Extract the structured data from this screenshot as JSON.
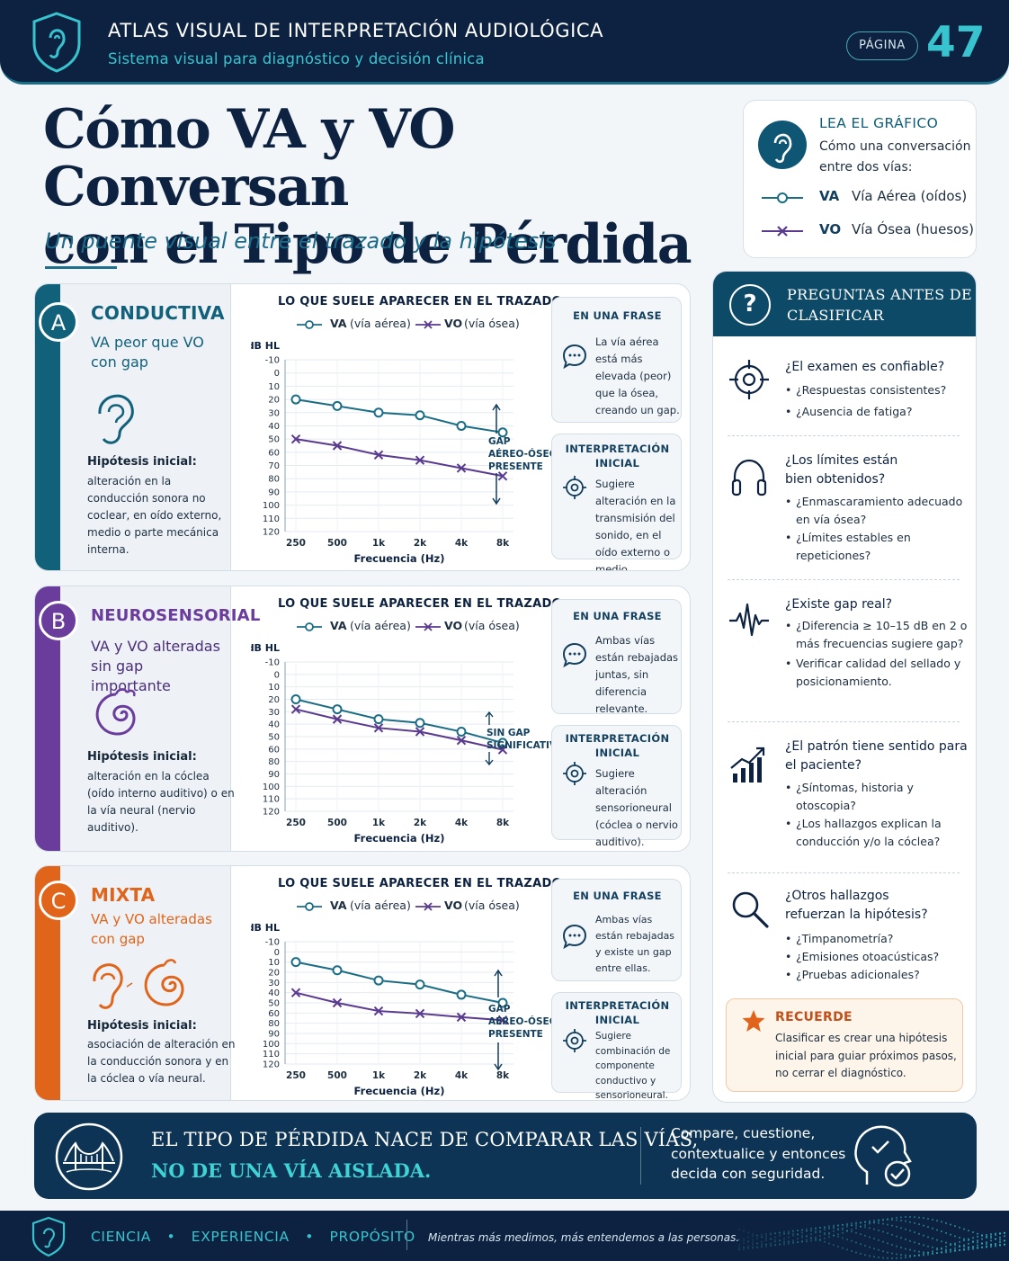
{
  "header": {
    "title": "ATLAS VISUAL DE INTERPRETACIÓN AUDIOLÓGICA",
    "subtitle": "Sistema visual para diagnóstico y decisión clínica",
    "page_label": "PÁGINA",
    "page_number": "47"
  },
  "hero": {
    "title_line1": "Cómo VA y VO Conversan",
    "title_line2": "con el Tipo de Pérdida",
    "subtitle": "Un puente visual entre el trazado y la hipótesis"
  },
  "legend": {
    "heading": "LEA EL GRÁFICO",
    "desc": "Cómo una conversación entre dos vías:",
    "va_abbr": "VA",
    "va_text": "Vía Aérea (oídos)",
    "vo_abbr": "VO",
    "vo_text": "Vía Ósea (huesos)"
  },
  "chart_common": {
    "graph_title": "LO QUE SUELE APARECER EN EL TRAZADO",
    "legend_va": "VA",
    "legend_va_note": "(vía aérea)",
    "legend_vo": "VO",
    "legend_vo_note": "(vía ósea)",
    "ylabel": "dB HL",
    "xlabel": "Frecuencia (Hz)",
    "yticks": [
      "-10",
      "0",
      "10",
      "20",
      "30",
      "40",
      "50",
      "60",
      "70",
      "80",
      "90",
      "100",
      "110",
      "120"
    ],
    "yticks_short": [
      "-10",
      "0",
      "10",
      "20",
      "30",
      "40",
      "50",
      "60",
      "80",
      "90",
      "100",
      "110",
      "120"
    ],
    "xticks": [
      "250",
      "500",
      "1k",
      "2k",
      "4k",
      "8k"
    ],
    "phrase_heading": "EN UNA FRASE",
    "interp_heading_1": "INTERPRETACIÓN",
    "interp_heading_2": "INICIAL",
    "hyp_heading": "Hipótesis inicial:"
  },
  "cards": [
    {
      "letter": "A",
      "title": "CONDUCTIVA",
      "subtitle": "VA peor que VO con gap",
      "hypothesis": "alteración en la conducción sonora no coclear, en oído externo, medio o parte mecánica interna.",
      "phrase": "La vía aérea está más elevada (peor) que la ósea, creando un gap.",
      "interpretation": "Sugiere alteración en la transmisión del sonido, en el oído externo o medio.",
      "gap_label": [
        "GAP",
        "AÉREO-ÓSEO",
        "PRESENTE"
      ],
      "color": "#12617a"
    },
    {
      "letter": "B",
      "title": "NEUROSENSORIAL",
      "subtitle": "VA y VO alteradas sin gap importante",
      "hypothesis": "alteración en la cóclea (oído interno auditivo) o en la vía neural (nervio auditivo).",
      "phrase": "Ambas vías están rebajadas juntas, sin diferencia relevante.",
      "interpretation": "Sugiere alteración sensorioneural (cóclea o nervio auditivo).",
      "gap_label": [
        "SIN GAP",
        "SIGNIFICATIVO"
      ],
      "color": "#6a3c9c"
    },
    {
      "letter": "C",
      "title": "MIXTA",
      "subtitle": "VA y VO alteradas con gap",
      "hypothesis": "asociación de alteración en la conducción sonora y en la cóclea o vía neural.",
      "phrase": "Ambas vías están rebajadas y existe un gap entre ellas.",
      "interpretation": "Sugiere combinación de componente conductivo y sensorioneural.",
      "gap_label": [
        "GAP",
        "AÉREO-ÓSEO",
        "PRESENTE"
      ],
      "color": "#e0641a"
    }
  ],
  "chart_data": [
    {
      "type": "line",
      "title": "LO QUE SUELE APARECER EN EL TRAZADO",
      "xlabel": "Frecuencia (Hz)",
      "ylabel": "dB HL",
      "categories": [
        "250",
        "500",
        "1k",
        "2k",
        "4k",
        "8k"
      ],
      "ylim": [
        -10,
        120
      ],
      "y_inverted": true,
      "series": [
        {
          "name": "VA (vía aérea)",
          "values": [
            20,
            25,
            30,
            32,
            40,
            45
          ]
        },
        {
          "name": "VO (vía ósea)",
          "values": [
            50,
            55,
            62,
            66,
            72,
            78
          ]
        }
      ]
    },
    {
      "type": "line",
      "title": "LO QUE SUELE APARECER EN EL TRAZADO",
      "xlabel": "Frecuencia (Hz)",
      "ylabel": "dB HL",
      "categories": [
        "250",
        "500",
        "1k",
        "2k",
        "4k",
        "8k"
      ],
      "ylim": [
        -10,
        120
      ],
      "y_inverted": true,
      "series": [
        {
          "name": "VA (vía aérea)",
          "values": [
            20,
            28,
            36,
            39,
            46,
            55
          ]
        },
        {
          "name": "VO (vía ósea)",
          "values": [
            28,
            36,
            43,
            46,
            53,
            61
          ]
        }
      ]
    },
    {
      "type": "line",
      "title": "LO QUE SUELE APARECER EN EL TRAZADO",
      "xlabel": "Frecuencia (Hz)",
      "ylabel": "dB HL",
      "categories": [
        "250",
        "500",
        "1k",
        "2k",
        "4k",
        "8k"
      ],
      "ylim": [
        -10,
        120
      ],
      "y_inverted": true,
      "series": [
        {
          "name": "VA (vía aérea)",
          "values": [
            10,
            18,
            28,
            32,
            42,
            50
          ]
        },
        {
          "name": "VO (vía ósea)",
          "values": [
            40,
            50,
            58,
            61,
            68,
            74
          ]
        }
      ]
    }
  ],
  "questions": {
    "header": "PREGUNTAS ANTES DE CLASIFICAR",
    "items": [
      {
        "title": "¿El examen es confiable?",
        "bullets": [
          "¿Respuestas consistentes?",
          "¿Ausencia de fatiga?"
        ]
      },
      {
        "title": "¿Los límites están bien obtenidos?",
        "bullets": [
          "¿Enmascaramiento adecuado en vía ósea?",
          "¿Límites estables en repeticiones?"
        ]
      },
      {
        "title": "¿Existe gap real?",
        "bullets": [
          "¿Diferencia ≥ 10–15 dB en 2 o más frecuencias sugiere gap?",
          "Verificar calidad del sellado y posicionamiento."
        ]
      },
      {
        "title": "¿El patrón tiene sentido para el paciente?",
        "bullets": [
          "¿Síntomas, historia y otoscopia?",
          "¿Los hallazgos explican la conducción y/o la cóclea?"
        ]
      },
      {
        "title": "¿Otros hallazgos refuerzan la hipótesis?",
        "bullets": [
          "¿Timpanometría?",
          "¿Emisiones otoacústicas?",
          "¿Pruebas adicionales?"
        ]
      }
    ],
    "remember_title": "RECUERDE",
    "remember_text": "Clasificar es crear una hipótesis inicial para guiar próximos pasos, no cerrar el diagnóstico."
  },
  "banner": {
    "line1": "EL TIPO DE PÉRDIDA NACE DE COMPARAR LAS VÍAS,",
    "line2": "NO DE UNA VÍA AISLADA.",
    "right": "Compare, cuestione, contextualice y entonces decida con seguridad."
  },
  "footer": {
    "links": [
      "CIENCIA",
      "EXPERIENCIA",
      "PROPÓSITO"
    ],
    "quote": "Mientras más medimos, más entendemos a las personas."
  },
  "colors": {
    "navy": "#0d2240",
    "teal": "#38c4cf",
    "va_line": "#1b6d86",
    "vo_line": "#5a3a8e",
    "conductiva": "#12617a",
    "neurosensorial": "#6a3c9c",
    "mixta": "#e0641a"
  }
}
